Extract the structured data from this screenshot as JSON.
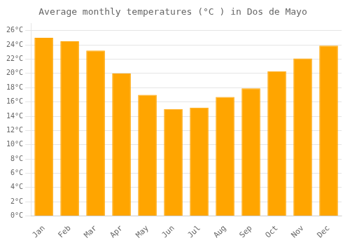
{
  "chart_data": {
    "type": "bar",
    "title": "Average monthly temperatures (°C ) in Dos de Mayo",
    "categories": [
      "Jan",
      "Feb",
      "Mar",
      "Apr",
      "May",
      "Jun",
      "Jul",
      "Aug",
      "Sep",
      "Oct",
      "Nov",
      "Dec"
    ],
    "values": [
      25.0,
      24.5,
      23.2,
      20.0,
      17.0,
      15.0,
      15.2,
      16.7,
      17.9,
      20.3,
      22.1,
      23.9
    ],
    "color": "#FFA500",
    "ylim": [
      0,
      27
    ],
    "yticks": [
      {
        "value": 0,
        "label": "0°C"
      },
      {
        "value": 2,
        "label": "2°C"
      },
      {
        "value": 4,
        "label": "4°C"
      },
      {
        "value": 6,
        "label": "6°C"
      },
      {
        "value": 8,
        "label": "8°C"
      },
      {
        "value": 10,
        "label": "10°C"
      },
      {
        "value": 12,
        "label": "12°C"
      },
      {
        "value": 14,
        "label": "14°C"
      },
      {
        "value": 16,
        "label": "16°C"
      },
      {
        "value": 18,
        "label": "18°C"
      },
      {
        "value": 20,
        "label": "20°C"
      },
      {
        "value": 22,
        "label": "22°C"
      },
      {
        "value": 24,
        "label": "24°C"
      },
      {
        "value": 26,
        "label": "26°C"
      }
    ],
    "grid": true
  }
}
